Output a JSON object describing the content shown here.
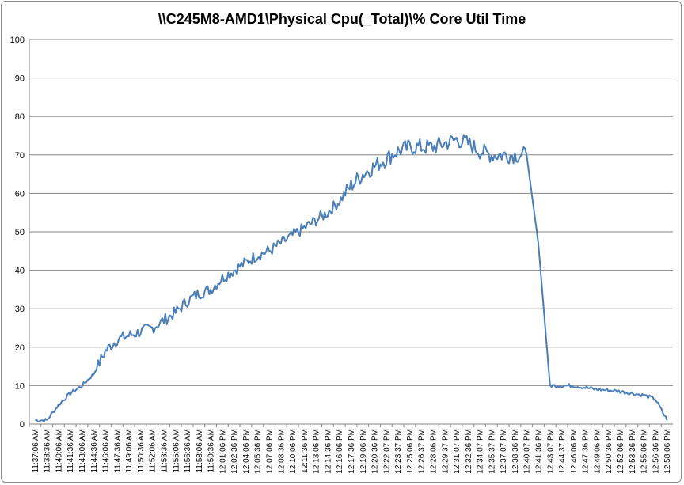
{
  "chart_data": {
    "type": "line",
    "title": "\\\\C245M8-AMD1\\Physical Cpu(_Total)\\% Core Util Time",
    "xlabel": "",
    "ylabel": "",
    "ylim": [
      0,
      100
    ],
    "yticks": [
      0,
      10,
      20,
      30,
      40,
      50,
      60,
      70,
      80,
      90,
      100
    ],
    "grid": true,
    "legend": "none",
    "line_color": "#4a7ebb",
    "categories": [
      "11:37:06 AM",
      "11:38:36 AM",
      "11:40:06 AM",
      "11:41:36 AM",
      "11:43:06 AM",
      "11:44:36 AM",
      "11:46:06 AM",
      "11:47:36 AM",
      "11:49:06 AM",
      "11:50:36 AM",
      "11:52:06 AM",
      "11:53:36 AM",
      "11:55:06 AM",
      "11:56:36 AM",
      "11:58:06 AM",
      "11:59:36 AM",
      "12:01:06 PM",
      "12:02:36 PM",
      "12:04:06 PM",
      "12:05:36 PM",
      "12:07:06 PM",
      "12:08:36 PM",
      "12:10:06 PM",
      "12:11:36 PM",
      "12:13:06 PM",
      "12:14:36 PM",
      "12:16:06 PM",
      "12:17:36 PM",
      "12:19:06 PM",
      "12:20:36 PM",
      "12:22:07 PM",
      "12:23:37 PM",
      "12:25:06 PM",
      "12:26:37 PM",
      "12:28:06 PM",
      "12:29:37 PM",
      "12:31:07 PM",
      "12:32:36 PM",
      "12:34:07 PM",
      "12:35:37 PM",
      "12:37:07 PM",
      "12:38:36 PM",
      "12:40:07 PM",
      "12:41:36 PM",
      "12:43:07 PM",
      "12:44:37 PM",
      "12:46:06 PM",
      "12:47:36 PM",
      "12:49:06 PM",
      "12:50:36 PM",
      "12:52:06 PM",
      "12:53:36 PM",
      "12:55:06 PM",
      "12:56:36 PM",
      "12:58:06 PM"
    ],
    "values": [
      1,
      1,
      5,
      8,
      10,
      13,
      19,
      22,
      23,
      24,
      25,
      27,
      29,
      32,
      34,
      35,
      38,
      40,
      42,
      44,
      45,
      47,
      49,
      51,
      53,
      55,
      58,
      62,
      65,
      67,
      69,
      71,
      72,
      72,
      72,
      73,
      74,
      73,
      71,
      70,
      70,
      70,
      70,
      47,
      10,
      10,
      10,
      9.5,
      9,
      8.8,
      8.5,
      8,
      7.5,
      6.5,
      1
    ]
  }
}
